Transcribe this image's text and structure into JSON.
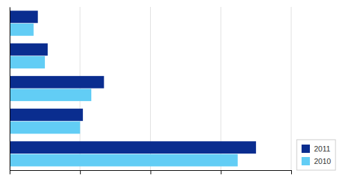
{
  "chart_data": {
    "type": "bar",
    "orientation": "horizontal",
    "categories": [
      null,
      null,
      null,
      null,
      null
    ],
    "series": [
      {
        "name": "2011",
        "color": "#0a2d8f",
        "values": [
          20,
          27,
          67,
          52,
          175
        ]
      },
      {
        "name": "2010",
        "color": "#62cdf5",
        "values": [
          17,
          25,
          58,
          50,
          162
        ]
      }
    ],
    "xlim": [
      0,
      200
    ],
    "xticks": [
      0,
      50,
      100,
      150,
      200
    ],
    "grid": true,
    "tick_labels": false,
    "legend": "lower right"
  }
}
